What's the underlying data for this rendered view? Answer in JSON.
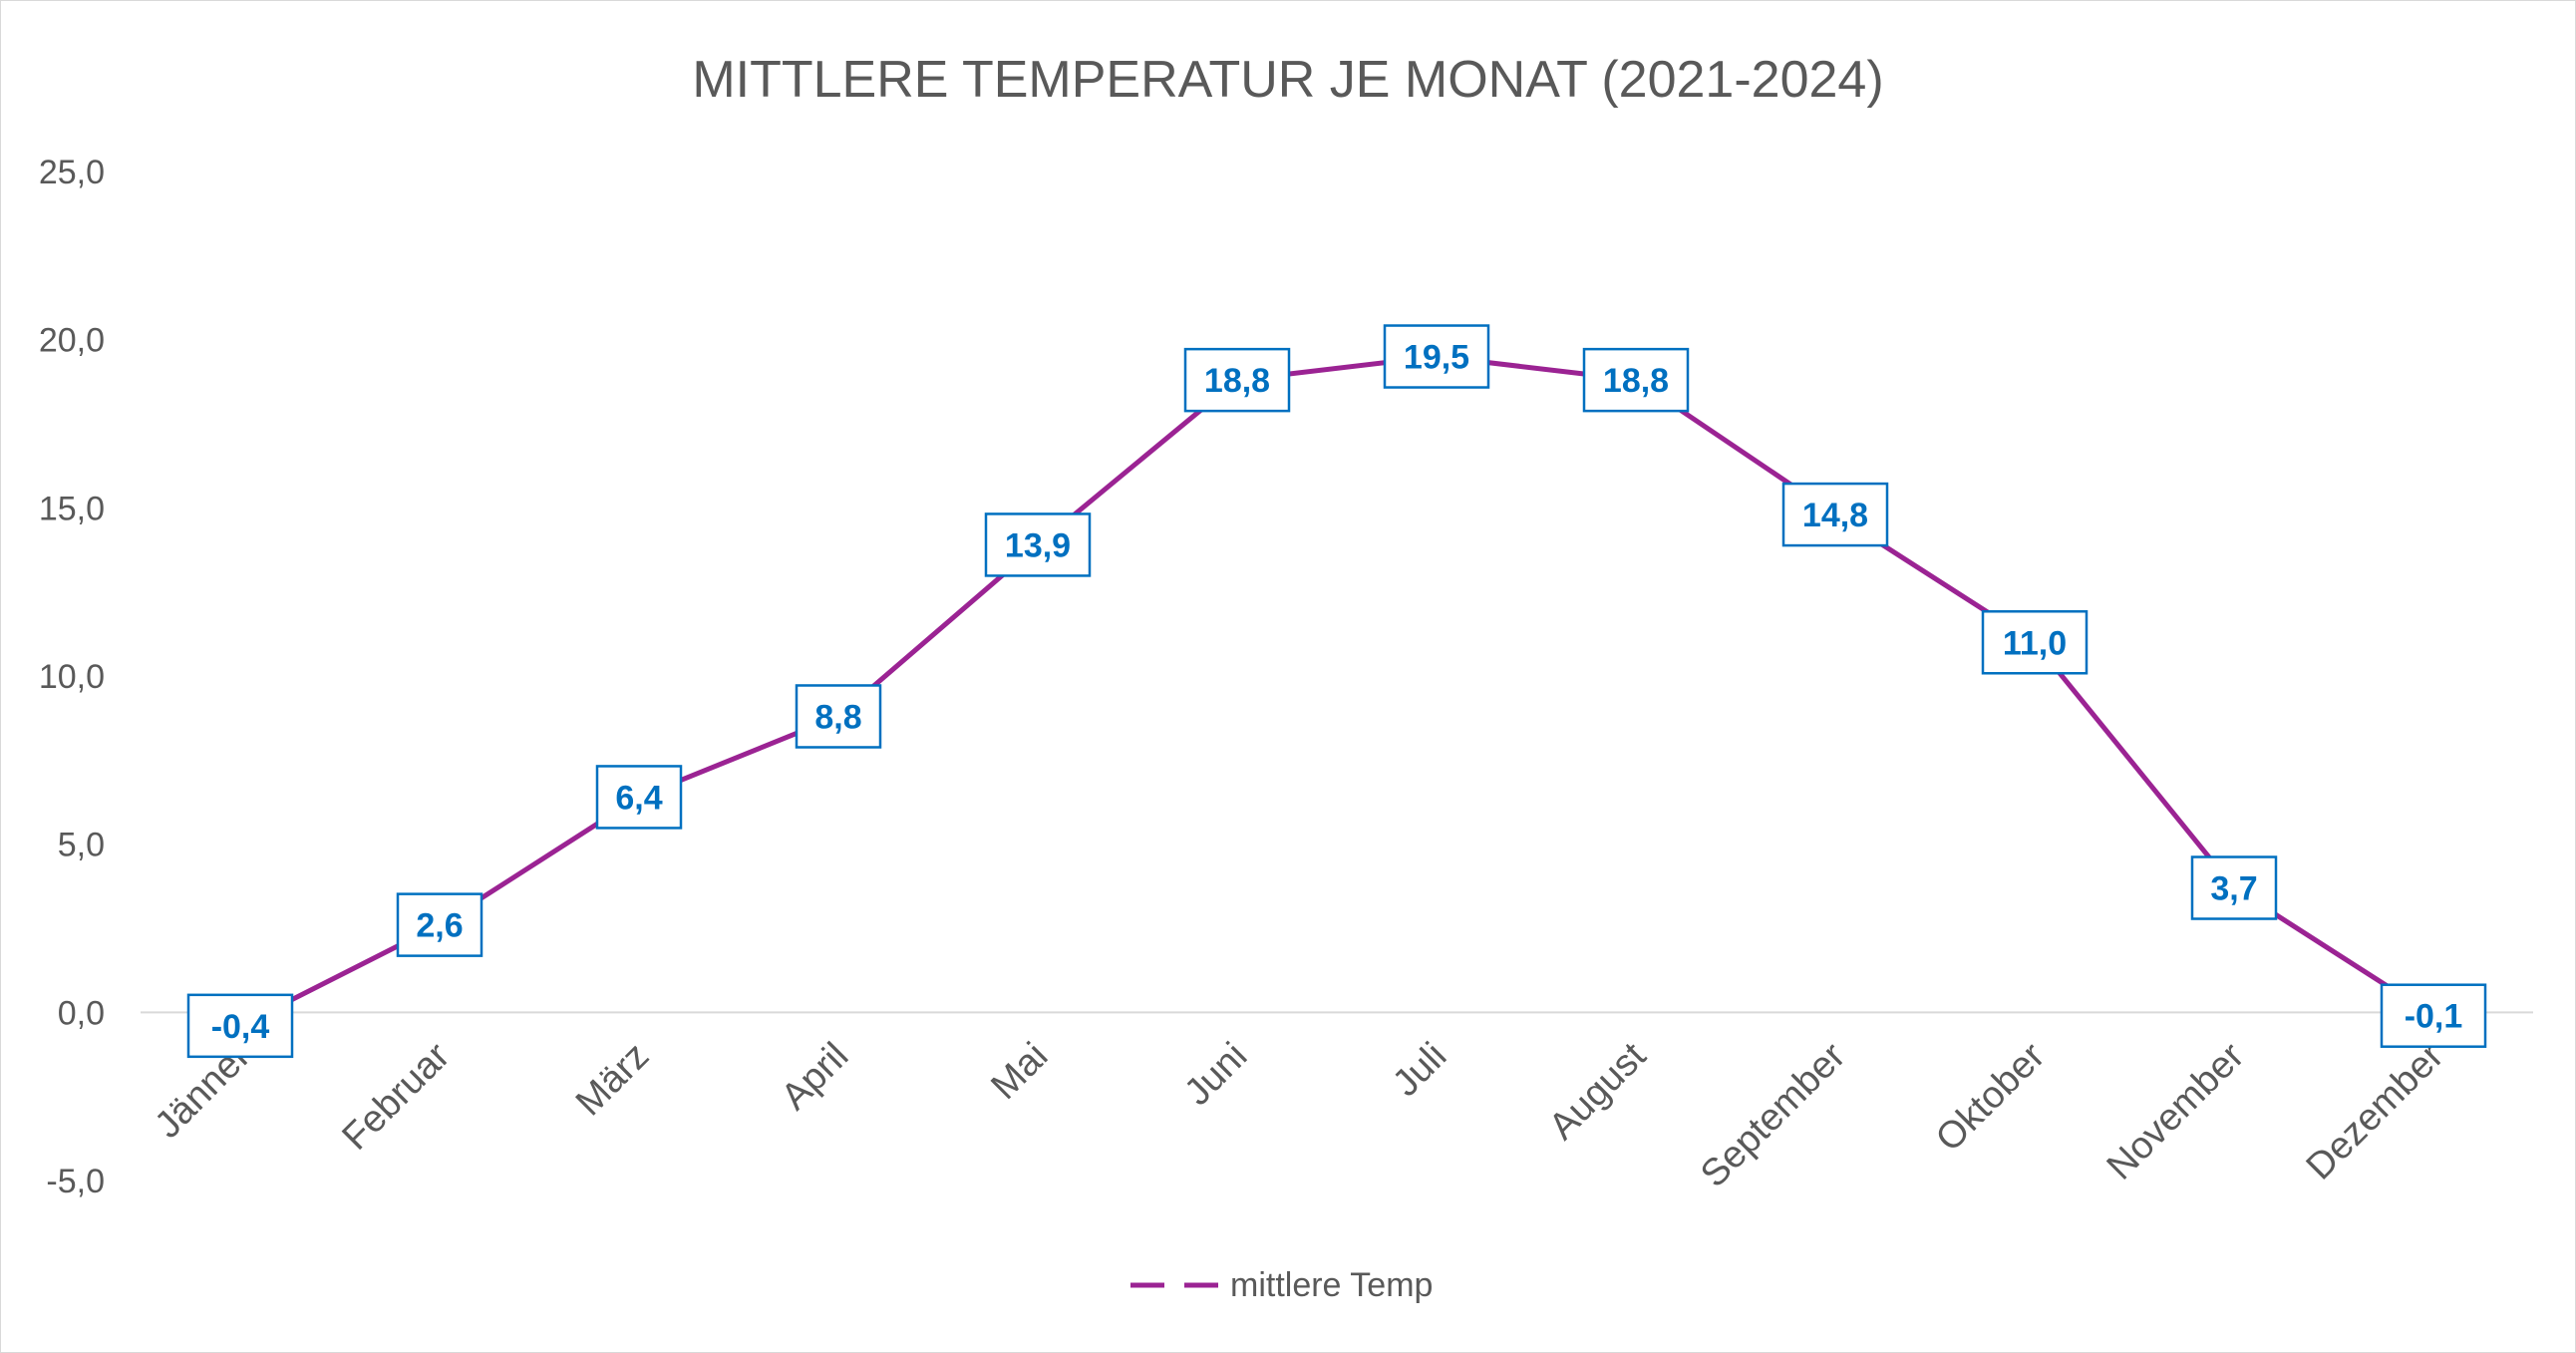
{
  "chart_data": {
    "type": "line",
    "title": "MITTLERE TEMPERATUR JE MONAT (2021-2024)",
    "categories": [
      "Jänner",
      "Februar",
      "März",
      "April",
      "Mai",
      "Juni",
      "Juli",
      "August",
      "September",
      "Oktober",
      "November",
      "Dezember"
    ],
    "series": [
      {
        "name": "mittlere Temp",
        "values": [
          -0.4,
          2.6,
          6.4,
          8.8,
          13.9,
          18.8,
          19.5,
          18.8,
          14.8,
          11.0,
          3.7,
          -0.1
        ],
        "labels": [
          "-0,4",
          "2,6",
          "6,4",
          "8,8",
          "13,9",
          "18,8",
          "19,5",
          "18,8",
          "14,8",
          "11,0",
          "3,7",
          "-0,1"
        ],
        "color": "#9b2393"
      }
    ],
    "yticks": [
      "25,0",
      "20,0",
      "15,0",
      "10,0",
      "5,0",
      "0,0",
      "-5,0"
    ],
    "ylim": [
      -5,
      25
    ],
    "grid": false,
    "legend_position": "bottom",
    "label_color": "#0070c0"
  }
}
